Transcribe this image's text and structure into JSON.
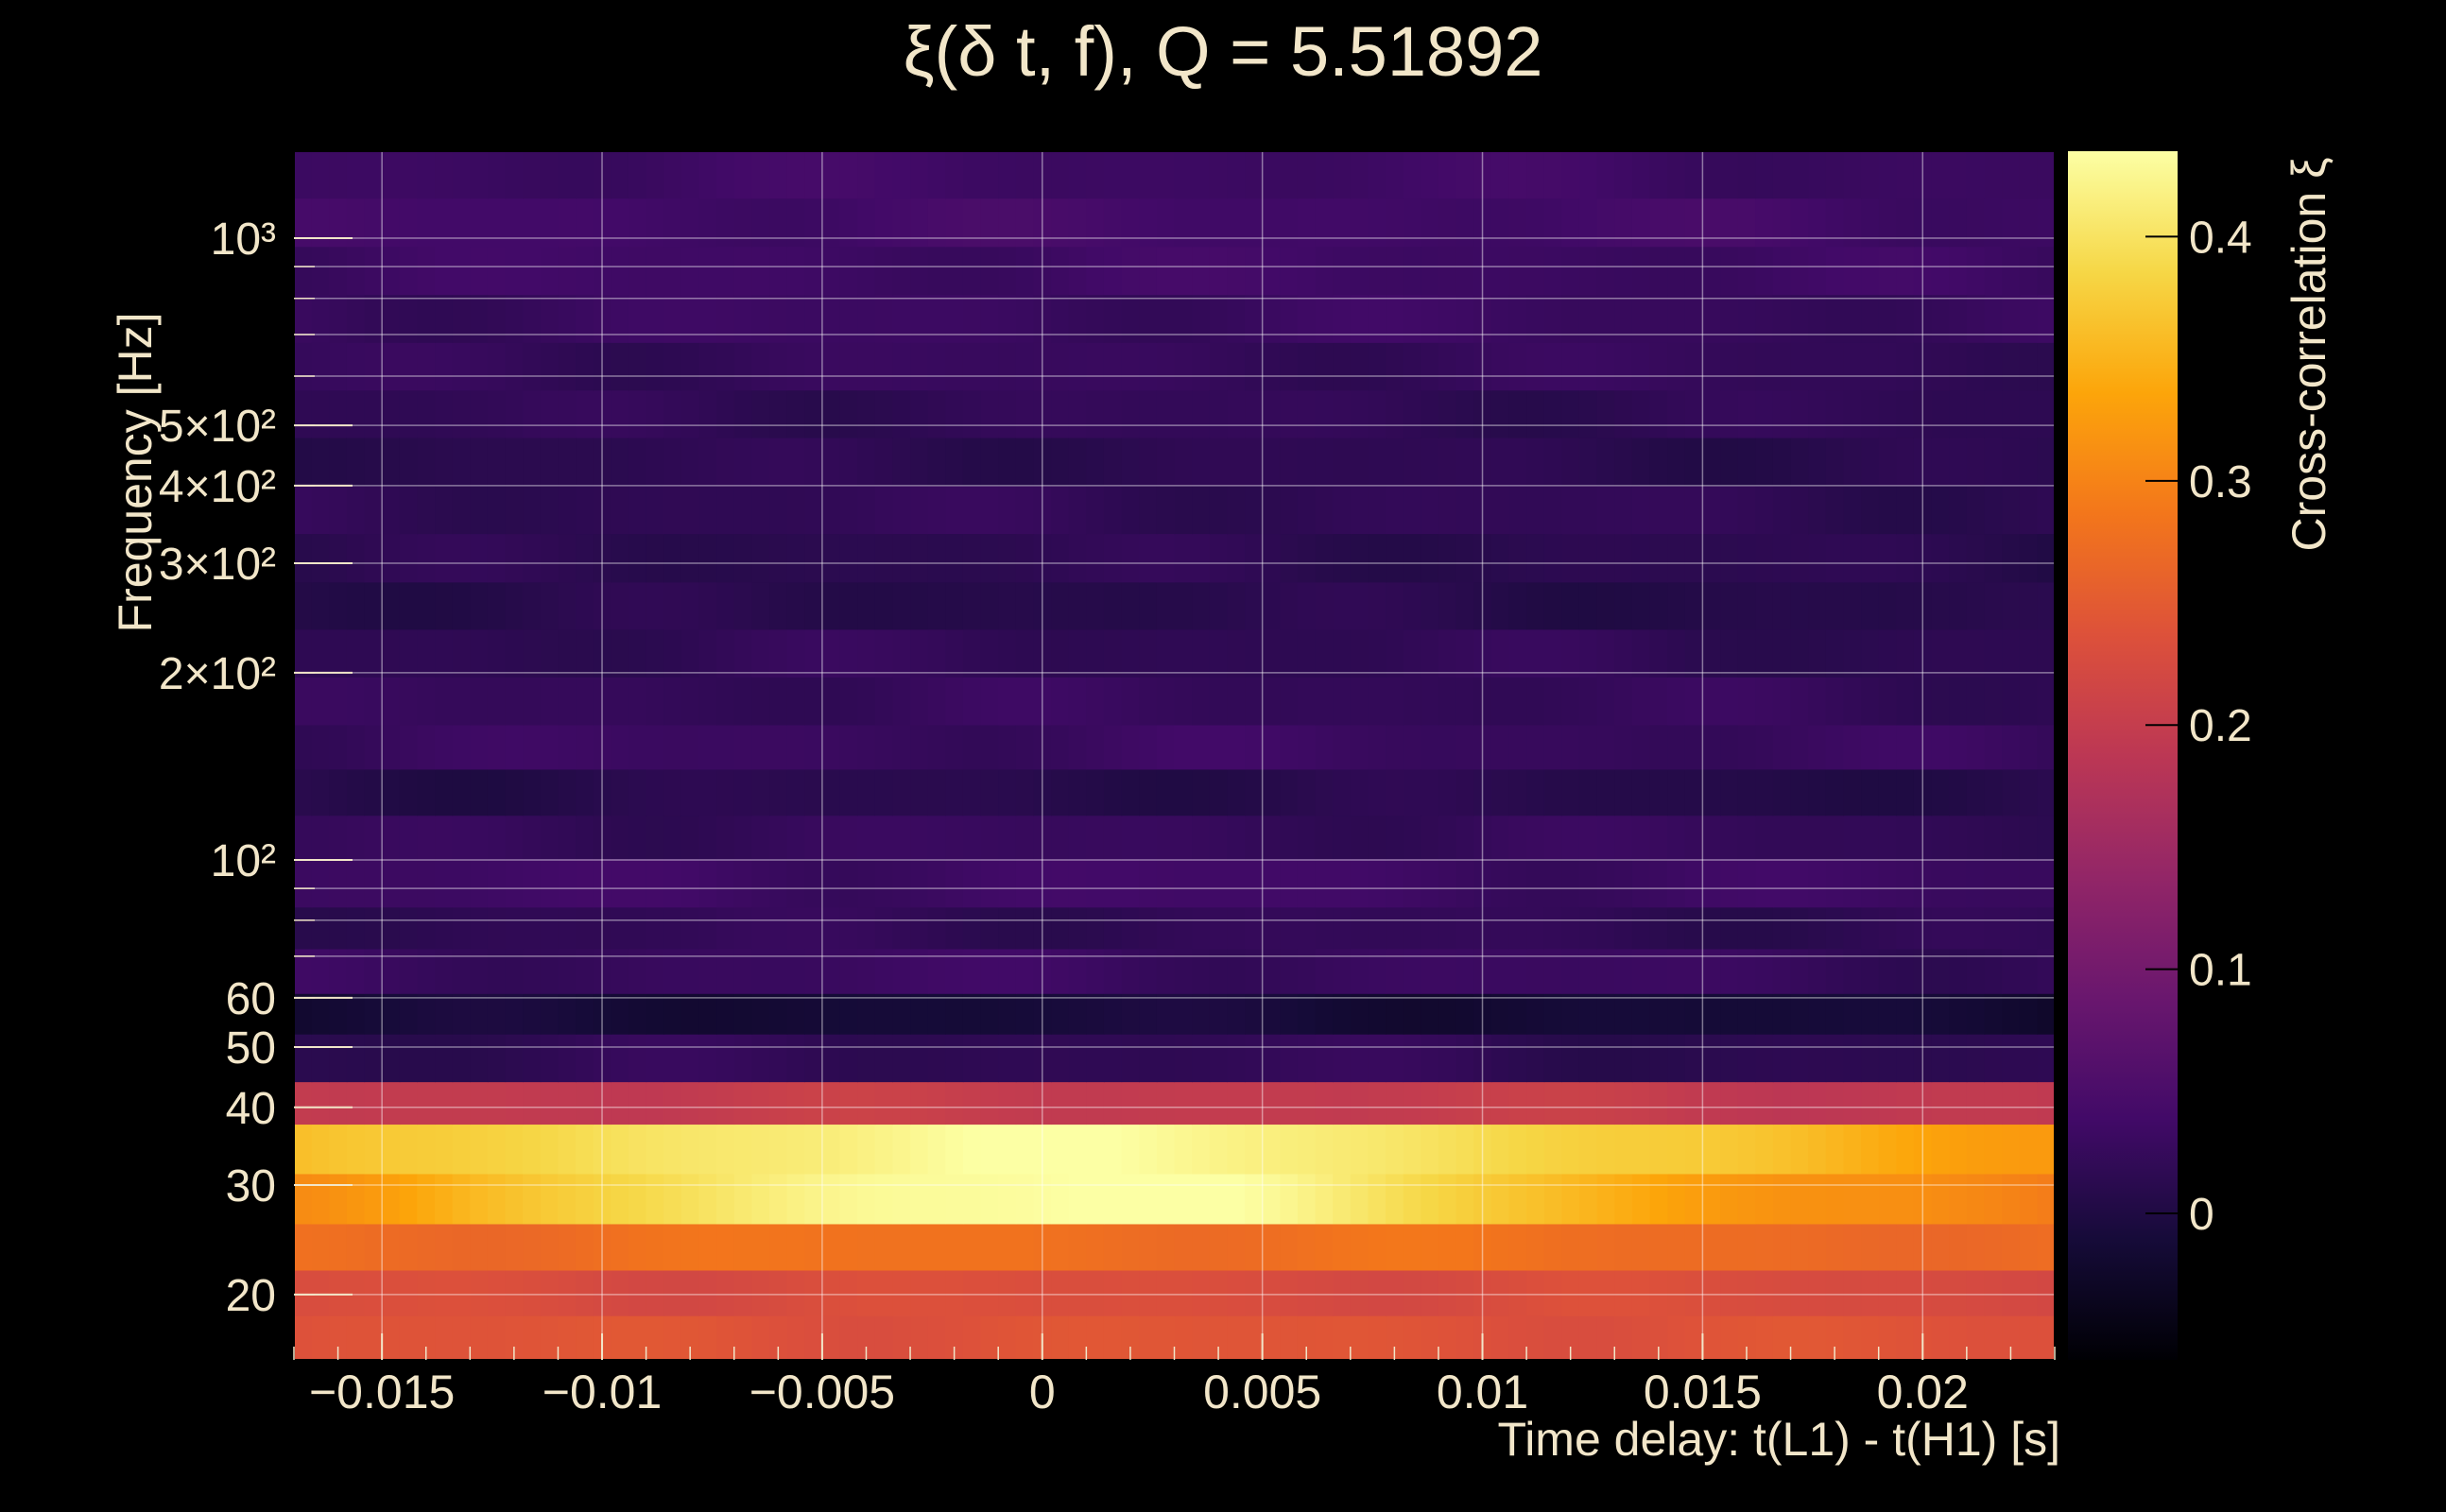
{
  "chart_data": {
    "type": "heatmap",
    "title": "ξ(δ t, f), Q = 5.51892",
    "xlabel": "Time delay: t(L1) - t(H1) [s]",
    "ylabel": "Frequency [Hz]",
    "colorbar_label": "Cross-correlation ξ",
    "colormap": "inferno",
    "x_range": [
      -0.017,
      0.023
    ],
    "y_range": [
      15.7,
      1380
    ],
    "y_scale": "log",
    "color_range": [
      -0.06,
      0.435
    ],
    "x_ticks": [
      {
        "v": -0.015,
        "label": "−0.015"
      },
      {
        "v": -0.01,
        "label": "−0.01"
      },
      {
        "v": -0.005,
        "label": "−0.005"
      },
      {
        "v": 0,
        "label": "0"
      },
      {
        "v": 0.005,
        "label": "0.005"
      },
      {
        "v": 0.01,
        "label": "0.01"
      },
      {
        "v": 0.015,
        "label": "0.015"
      },
      {
        "v": 0.02,
        "label": "0.02"
      }
    ],
    "y_ticks": [
      {
        "v": 20,
        "label": "20"
      },
      {
        "v": 30,
        "label": "30"
      },
      {
        "v": 40,
        "label": "40"
      },
      {
        "v": 50,
        "label": "50"
      },
      {
        "v": 60,
        "label": "60"
      },
      {
        "v": 100,
        "label": "10²"
      },
      {
        "v": 200,
        "label": "2×10²"
      },
      {
        "v": 300,
        "label": "3×10²"
      },
      {
        "v": 400,
        "label": "4×10²"
      },
      {
        "v": 500,
        "label": "5×10²"
      },
      {
        "v": 1000,
        "label": "10³"
      }
    ],
    "colorbar_ticks": [
      {
        "v": 0,
        "label": "0"
      },
      {
        "v": 0.1,
        "label": "0.1"
      },
      {
        "v": 0.2,
        "label": "0.2"
      },
      {
        "v": 0.3,
        "label": "0.3"
      },
      {
        "v": 0.4,
        "label": "0.4"
      }
    ],
    "grid": true,
    "freq_bands": [
      {
        "f_low": 15.7,
        "f_high": 18.5,
        "base": 0.2,
        "peak": 0.24,
        "width": 0.05
      },
      {
        "f_low": 18.5,
        "f_high": 21.9,
        "base": 0.19,
        "peak": 0.23,
        "width": 0.05
      },
      {
        "f_low": 21.9,
        "f_high": 26.0,
        "base": 0.21,
        "peak": 0.28,
        "width": 0.04
      },
      {
        "f_low": 26.0,
        "f_high": 31.3,
        "base": 0.28,
        "peak": 0.44,
        "width": 0.01
      },
      {
        "f_low": 31.3,
        "f_high": 37.6,
        "base": 0.31,
        "peak": 0.43,
        "width": 0.012
      },
      {
        "f_low": 37.6,
        "f_high": 44.0,
        "base": 0.175,
        "peak": 0.2,
        "width": 0.03
      },
      {
        "f_low": 44.0,
        "f_high": 52.5,
        "base": 0.0,
        "peak": 0.02,
        "width": 0.02
      },
      {
        "f_low": 52.5,
        "f_high": 61.0,
        "base": -0.025,
        "peak": -0.01,
        "width": 0.02
      },
      {
        "f_low": 61.0,
        "f_high": 72.0,
        "base": 0.015,
        "peak": 0.03,
        "width": 0.02
      },
      {
        "f_low": 72.0,
        "f_high": 84.0,
        "base": 0.01,
        "peak": 0.02,
        "width": 0.02
      },
      {
        "f_low": 84.0,
        "f_high": 100.5,
        "base": 0.02,
        "peak": 0.035,
        "width": 0.02
      },
      {
        "f_low": 100.5,
        "f_high": 118.0,
        "base": 0.015,
        "peak": 0.025,
        "width": 0.02
      },
      {
        "f_low": 118.0,
        "f_high": 140.0,
        "base": 0.0,
        "peak": 0.01,
        "width": 0.02
      },
      {
        "f_low": 140.0,
        "f_high": 165.0,
        "base": 0.02,
        "peak": 0.03,
        "width": 0.02
      },
      {
        "f_low": 165.0,
        "f_high": 197.0,
        "base": 0.015,
        "peak": 0.025,
        "width": 0.02
      },
      {
        "f_low": 197.0,
        "f_high": 235.0,
        "base": 0.01,
        "peak": 0.02,
        "width": 0.02
      },
      {
        "f_low": 235.0,
        "f_high": 280.0,
        "base": 0.0,
        "peak": 0.01,
        "width": 0.02
      },
      {
        "f_low": 280.0,
        "f_high": 335.0,
        "base": 0.005,
        "peak": 0.015,
        "width": 0.02
      },
      {
        "f_low": 335.0,
        "f_high": 400.0,
        "base": 0.01,
        "peak": 0.02,
        "width": 0.02
      },
      {
        "f_low": 400.0,
        "f_high": 478.0,
        "base": 0.005,
        "peak": 0.015,
        "width": 0.02
      },
      {
        "f_low": 478.0,
        "f_high": 570.0,
        "base": 0.01,
        "peak": 0.02,
        "width": 0.02
      },
      {
        "f_low": 570.0,
        "f_high": 680.0,
        "base": 0.015,
        "peak": 0.025,
        "width": 0.02
      },
      {
        "f_low": 680.0,
        "f_high": 812.0,
        "base": 0.02,
        "peak": 0.03,
        "width": 0.02
      },
      {
        "f_low": 812.0,
        "f_high": 970.0,
        "base": 0.025,
        "peak": 0.035,
        "width": 0.02
      },
      {
        "f_low": 970.0,
        "f_high": 1160.0,
        "base": 0.03,
        "peak": 0.04,
        "width": 0.02
      },
      {
        "f_low": 1160.0,
        "f_high": 1380.0,
        "base": 0.025,
        "peak": 0.035,
        "width": 0.02
      }
    ]
  }
}
